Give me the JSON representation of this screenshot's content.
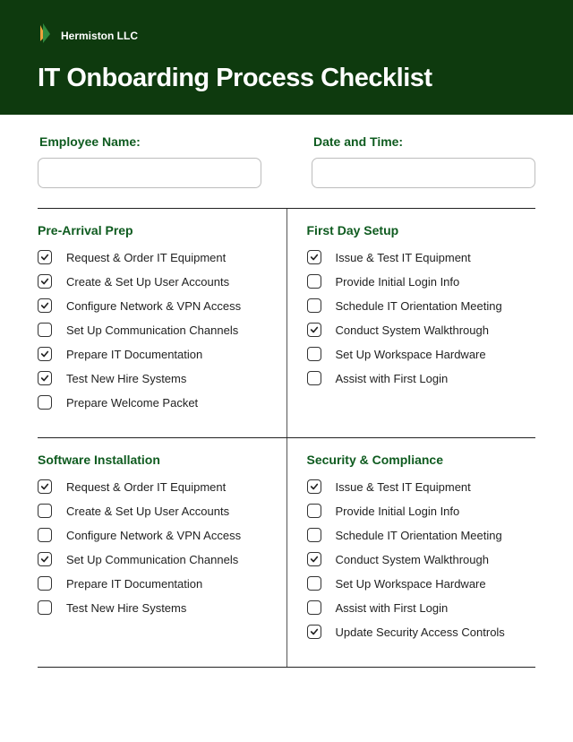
{
  "colors": {
    "header_bg": "#0e3a0e",
    "accent": "#0e5b1f",
    "logo_orange": "#e8a23c",
    "logo_green": "#2e8b3d"
  },
  "brand": {
    "name": "Hermiston LLC"
  },
  "title": "IT Onboarding Process Checklist",
  "form": {
    "employee_label": "Employee Name:",
    "datetime_label": "Date and Time:"
  },
  "sections": [
    {
      "title": "Pre-Arrival Prep",
      "items": [
        {
          "label": "Request & Order IT Equipment",
          "checked": true
        },
        {
          "label": "Create & Set Up User Accounts",
          "checked": true
        },
        {
          "label": "Configure Network & VPN Access",
          "checked": true
        },
        {
          "label": "Set Up Communication Channels",
          "checked": false
        },
        {
          "label": "Prepare IT Documentation",
          "checked": true
        },
        {
          "label": "Test New Hire Systems",
          "checked": true
        },
        {
          "label": "Prepare Welcome Packet",
          "checked": false
        }
      ]
    },
    {
      "title": "First Day Setup",
      "items": [
        {
          "label": "Issue & Test IT Equipment",
          "checked": true
        },
        {
          "label": "Provide Initial Login Info",
          "checked": false
        },
        {
          "label": "Schedule IT Orientation Meeting",
          "checked": false
        },
        {
          "label": "Conduct System Walkthrough",
          "checked": true
        },
        {
          "label": "Set Up Workspace Hardware",
          "checked": false
        },
        {
          "label": "Assist with First Login",
          "checked": false
        }
      ]
    },
    {
      "title": "Software Installation",
      "items": [
        {
          "label": "Request & Order IT Equipment",
          "checked": true
        },
        {
          "label": "Create & Set Up User Accounts",
          "checked": false
        },
        {
          "label": "Configure Network & VPN Access",
          "checked": false
        },
        {
          "label": "Set Up Communication Channels",
          "checked": true
        },
        {
          "label": "Prepare IT Documentation",
          "checked": false
        },
        {
          "label": "Test New Hire Systems",
          "checked": false
        }
      ]
    },
    {
      "title": "Security & Compliance",
      "items": [
        {
          "label": "Issue & Test IT Equipment",
          "checked": true
        },
        {
          "label": "Provide Initial Login Info",
          "checked": false
        },
        {
          "label": "Schedule IT Orientation Meeting",
          "checked": false
        },
        {
          "label": "Conduct System Walkthrough",
          "checked": true
        },
        {
          "label": "Set Up Workspace Hardware",
          "checked": false
        },
        {
          "label": "Assist with First Login",
          "checked": false
        },
        {
          "label": "Update Security Access Controls",
          "checked": true
        }
      ]
    }
  ]
}
